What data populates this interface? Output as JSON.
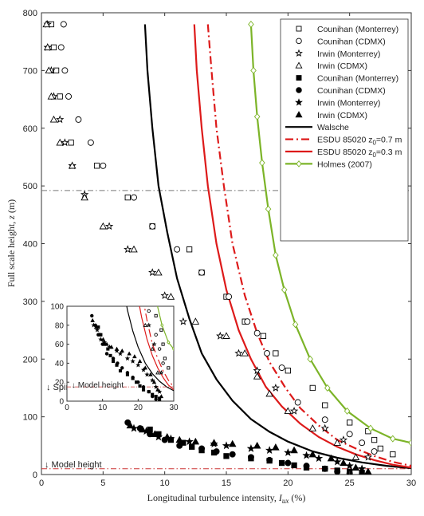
{
  "chart_data": {
    "type": "scatter",
    "xlabel": "Longitudinal turbulence intensity, I_ux (%)",
    "ylabel": "Full scale height, z (m)",
    "xlim": [
      0,
      30
    ],
    "ylim": [
      0,
      800
    ],
    "xticks": [
      "0",
      "5",
      "10",
      "15",
      "20",
      "25",
      "30"
    ],
    "yticks": [
      "0",
      "100",
      "200",
      "300",
      "400",
      "500",
      "600",
      "700",
      "800"
    ],
    "grid": false,
    "legend_position": "top-right",
    "colors": {
      "black": "#000000",
      "red": "#dd1a1a",
      "green": "#7cb428"
    },
    "reference_lines": [
      {
        "label": "Spires height",
        "y": 492,
        "color": "#777777"
      },
      {
        "label": "Model height",
        "y": 10,
        "color": "#cc3333"
      }
    ],
    "series": [
      {
        "name": "Counihan (Monterrey)",
        "marker": "square-open",
        "color": "#000000",
        "x": [
          0.8,
          1,
          1.2,
          1.5,
          2.4,
          4.5,
          7,
          9,
          12,
          13,
          15,
          16.5,
          18,
          19,
          20,
          22,
          23,
          25,
          26.5,
          27,
          27.5,
          28.5
        ],
        "y": [
          780,
          740,
          700,
          655,
          575,
          535,
          480,
          430,
          390,
          350,
          308,
          265,
          240,
          210,
          180,
          150,
          120,
          90,
          75,
          60,
          45,
          35
        ]
      },
      {
        "name": "Counihan (CDMX)",
        "marker": "circle-open",
        "color": "#000000",
        "x": [
          1.8,
          1.6,
          1.9,
          2.2,
          3,
          4,
          5,
          7.5,
          9,
          11,
          13,
          15.2,
          16.7,
          17.5,
          18.3,
          19.5,
          20.8,
          23,
          25,
          26,
          27
        ],
        "y": [
          780,
          740,
          700,
          655,
          615,
          575,
          535,
          480,
          430,
          390,
          350,
          308,
          265,
          245,
          210,
          185,
          125,
          95,
          70,
          55,
          40
        ]
      },
      {
        "name": "Irwin (Monterrey)",
        "marker": "star-open",
        "color": "#000000",
        "x": [
          0.5,
          0.5,
          0.8,
          1,
          1.5,
          1.9,
          2.5,
          3.5,
          5.5,
          7,
          9,
          10,
          11.5,
          14.5,
          16,
          17.5,
          19,
          20.5,
          23,
          24.5,
          26.5
        ],
        "y": [
          780,
          740,
          700,
          655,
          615,
          575,
          535,
          485,
          430,
          390,
          350,
          310,
          265,
          240,
          210,
          180,
          150,
          110,
          80,
          60,
          30
        ]
      },
      {
        "name": "Irwin (CDMX)",
        "marker": "triangle-open",
        "color": "#000000",
        "x": [
          0.4,
          0.5,
          0.6,
          0.8,
          1,
          1.5,
          2.5,
          3.5,
          5,
          7.5,
          9.5,
          10.5,
          12.5,
          15,
          16.5,
          17.5,
          18.5,
          20,
          22,
          24,
          25.5
        ],
        "y": [
          780,
          740,
          700,
          655,
          615,
          575,
          535,
          480,
          430,
          390,
          350,
          308,
          265,
          240,
          210,
          170,
          140,
          110,
          80,
          55,
          30
        ]
      },
      {
        "name": "Counihan (Monterrey)",
        "marker": "square-filled",
        "color": "#000000",
        "x": [
          8.8,
          9.5,
          10.5,
          11.5,
          12.2,
          13,
          14,
          15,
          17,
          18.5,
          19.5,
          20.5,
          21.5,
          23,
          24,
          25,
          26
        ],
        "y": [
          78,
          70,
          60,
          55,
          48,
          42,
          38,
          32,
          28,
          24,
          20,
          16,
          12,
          10,
          7,
          5,
          3
        ]
      },
      {
        "name": "Counihan (CDMX)",
        "marker": "circle-filled",
        "color": "#000000",
        "x": [
          7,
          8,
          8.8,
          10,
          11.2,
          13,
          14.2,
          15.5,
          17,
          18.5,
          20,
          21.5,
          23,
          24,
          25,
          26
        ],
        "y": [
          90,
          80,
          70,
          60,
          50,
          45,
          40,
          35,
          30,
          25,
          20,
          15,
          10,
          5,
          2,
          0
        ]
      },
      {
        "name": "Irwin (Monterrey)",
        "marker": "star-filled",
        "color": "#000000",
        "x": [
          7.5,
          8.5,
          9.5,
          10.5,
          12,
          14,
          15,
          17,
          18.5,
          20,
          21.5,
          22.5,
          24,
          25,
          26
        ],
        "y": [
          80,
          75,
          65,
          62,
          57,
          53,
          50,
          45,
          42,
          38,
          33,
          28,
          22,
          15,
          10
        ]
      },
      {
        "name": "Irwin (CDMX)",
        "marker": "triangle-filled",
        "color": "#000000",
        "x": [
          7.2,
          8.2,
          9.2,
          10.2,
          11.2,
          12.5,
          14,
          15.5,
          17.5,
          19,
          20.5,
          22,
          23.5,
          24.5,
          25.5,
          26.5
        ],
        "y": [
          85,
          78,
          70,
          65,
          60,
          57,
          55,
          53,
          50,
          47,
          42,
          35,
          28,
          20,
          12,
          5
        ]
      },
      {
        "name": "Walsche",
        "marker": "line",
        "style": "solid",
        "color": "#000000",
        "x": [
          8.4,
          8.6,
          9,
          9.5,
          10.2,
          11,
          12,
          13,
          14.2,
          15.5,
          17,
          18.5,
          20,
          22,
          24,
          26,
          28,
          30
        ],
        "y": [
          780,
          700,
          600,
          500,
          420,
          340,
          270,
          210,
          165,
          128,
          96,
          74,
          57,
          40,
          29,
          21,
          15,
          11
        ]
      },
      {
        "name": "ESDU 85020 z0=0.7 m",
        "marker": "line",
        "style": "dashdot",
        "color": "#dd1a1a",
        "x": [
          13.5,
          13.8,
          14.2,
          14.8,
          15.5,
          16.5,
          17.5,
          18.5,
          19.8,
          21,
          22.5,
          24,
          25.5,
          27,
          28.5,
          30
        ],
        "y": [
          780,
          700,
          600,
          500,
          400,
          310,
          245,
          195,
          150,
          115,
          85,
          60,
          45,
          32,
          22,
          15
        ]
      },
      {
        "name": "ESDU 85020 z0=0.3 m",
        "marker": "line",
        "style": "solid",
        "color": "#dd1a1a",
        "x": [
          12.4,
          12.6,
          13,
          13.5,
          14.2,
          15,
          16,
          17,
          18.2,
          19.5,
          21,
          22.5,
          24,
          25.5,
          27,
          28.5,
          30
        ],
        "y": [
          780,
          700,
          600,
          500,
          400,
          320,
          250,
          200,
          152,
          118,
          88,
          65,
          48,
          35,
          25,
          17,
          12
        ]
      },
      {
        "name": "Holmes (2007)",
        "marker": "diamond-open-line",
        "color": "#7cb428",
        "x": [
          17,
          17.2,
          17.5,
          17.9,
          18.4,
          19,
          19.7,
          20.6,
          21.8,
          23.2,
          24.8,
          26.7,
          28.5,
          30
        ],
        "y": [
          780,
          700,
          620,
          540,
          460,
          380,
          320,
          260,
          200,
          150,
          110,
          80,
          62,
          55
        ]
      }
    ],
    "inset": {
      "xlim": [
        0,
        30
      ],
      "ylim": [
        0,
        100
      ],
      "xticks": [
        "0",
        "10",
        "20",
        "30"
      ],
      "yticks": [
        "0",
        "20",
        "40",
        "60",
        "80",
        "100"
      ],
      "annotation": "Model height",
      "annotation_y": 15
    }
  }
}
